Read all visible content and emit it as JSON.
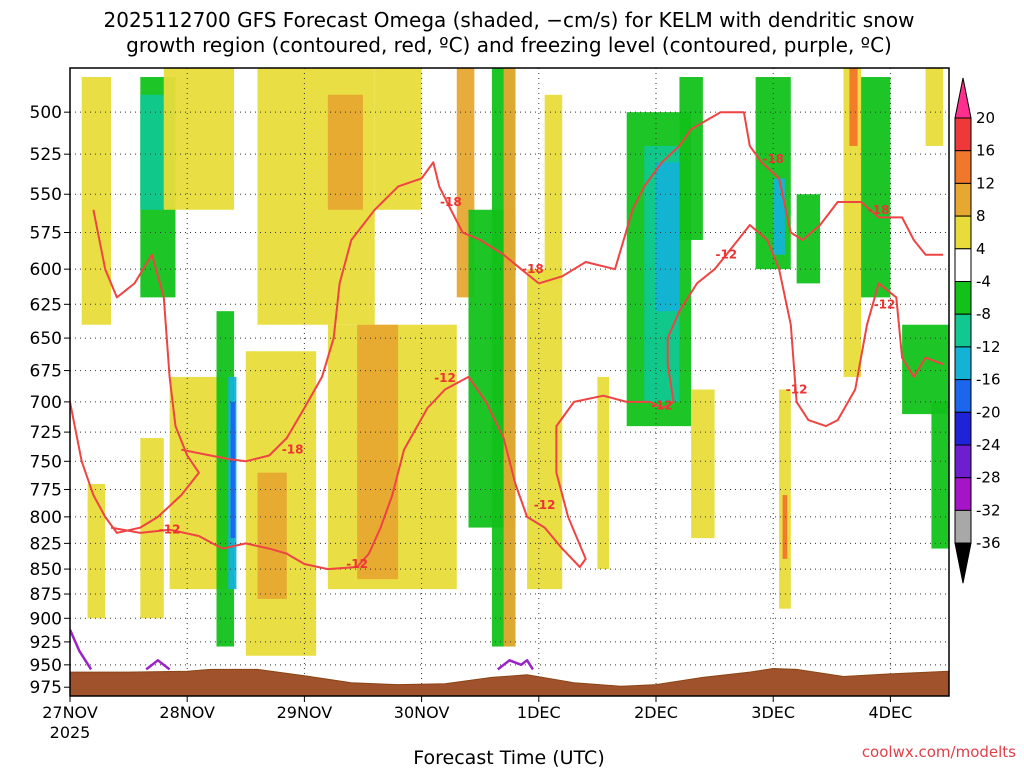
{
  "chart_data": {
    "type": "heatmap",
    "title_line1": "2025112700 GFS Forecast Omega (shaded, −cm/s) for KELM with dendritic snow",
    "title_line2": "growth region (contoured, red, ºC) and freezing level (contoured, purple, ºC)",
    "xlabel": "Forecast Time (UTC)",
    "credit": "coolwx.com/modelts",
    "x_ticks": [
      "27NOV",
      "28NOV",
      "29NOV",
      "30NOV",
      "1DEC",
      "2DEC",
      "3DEC",
      "4DEC"
    ],
    "x_year": "2025",
    "x_range_days": [
      0,
      7.5
    ],
    "y_ticks": [
      500,
      525,
      550,
      575,
      600,
      625,
      650,
      675,
      700,
      725,
      750,
      775,
      800,
      825,
      850,
      875,
      900,
      925,
      950,
      975
    ],
    "y_range_hpa": [
      475,
      985
    ],
    "y_scale": "log",
    "grid": "dotted",
    "colorbar": {
      "labels": [
        "20",
        "16",
        "12",
        "8",
        "4",
        "-4",
        "-8",
        "-12",
        "-16",
        "-20",
        "-24",
        "-28",
        "-32",
        "-36"
      ],
      "bins": [
        {
          "color": "#ff2f8e"
        },
        {
          "color": "#ef3838"
        },
        {
          "color": "#f1772a"
        },
        {
          "color": "#e7a832"
        },
        {
          "color": "#e8dc3a"
        },
        {
          "color": "#ffffff"
        },
        {
          "color": "#12c21a"
        },
        {
          "color": "#11c890"
        },
        {
          "color": "#14b3d6"
        },
        {
          "color": "#1b66ec"
        },
        {
          "color": "#2022d8"
        },
        {
          "color": "#6d1fd0"
        },
        {
          "color": "#a614c8"
        },
        {
          "color": "#a8a8a8"
        },
        {
          "color": "#000000"
        }
      ]
    },
    "omega_patches": [
      {
        "t0": 0.1,
        "t1": 0.35,
        "p0": 480,
        "p1": 640,
        "level": 4
      },
      {
        "t0": 0.6,
        "t1": 0.9,
        "p0": 480,
        "p1": 620,
        "level": -8
      },
      {
        "t0": 0.6,
        "t1": 0.85,
        "p0": 490,
        "p1": 560,
        "level": -12
      },
      {
        "t0": 0.15,
        "t1": 0.3,
        "p0": 770,
        "p1": 900,
        "level": 4
      },
      {
        "t0": 0.6,
        "t1": 0.8,
        "p0": 730,
        "p1": 900,
        "level": 4
      },
      {
        "t0": 0.8,
        "t1": 1.4,
        "p0": 470,
        "p1": 560,
        "level": 4
      },
      {
        "t0": 0.85,
        "t1": 1.4,
        "p0": 680,
        "p1": 870,
        "level": 4
      },
      {
        "t0": 1.25,
        "t1": 1.4,
        "p0": 630,
        "p1": 930,
        "level": -8
      },
      {
        "t0": 1.35,
        "t1": 1.42,
        "p0": 680,
        "p1": 870,
        "level": -16
      },
      {
        "t0": 1.37,
        "t1": 1.41,
        "p0": 700,
        "p1": 820,
        "level": -20
      },
      {
        "t0": 1.5,
        "t1": 2.1,
        "p0": 660,
        "p1": 940,
        "level": 4
      },
      {
        "t0": 1.6,
        "t1": 1.85,
        "p0": 760,
        "p1": 880,
        "level": 8
      },
      {
        "t0": 1.6,
        "t1": 2.6,
        "p0": 470,
        "p1": 640,
        "level": 4
      },
      {
        "t0": 2.2,
        "t1": 2.5,
        "p0": 490,
        "p1": 560,
        "level": 8
      },
      {
        "t0": 2.2,
        "t1": 3.3,
        "p0": 640,
        "p1": 870,
        "level": 4
      },
      {
        "t0": 2.45,
        "t1": 2.8,
        "p0": 640,
        "p1": 860,
        "level": 8
      },
      {
        "t0": 2.6,
        "t1": 3.0,
        "p0": 470,
        "p1": 560,
        "level": 4
      },
      {
        "t0": 3.3,
        "t1": 3.45,
        "p0": 470,
        "p1": 620,
        "level": 8
      },
      {
        "t0": 3.4,
        "t1": 3.8,
        "p0": 560,
        "p1": 810,
        "level": -8
      },
      {
        "t0": 3.6,
        "t1": 3.8,
        "p0": 470,
        "p1": 930,
        "level": -8
      },
      {
        "t0": 3.7,
        "t1": 3.8,
        "p0": 470,
        "p1": 930,
        "level": 8
      },
      {
        "t0": 3.9,
        "t1": 4.2,
        "p0": 600,
        "p1": 870,
        "level": 4
      },
      {
        "t0": 4.05,
        "t1": 4.2,
        "p0": 490,
        "p1": 610,
        "level": 4
      },
      {
        "t0": 4.5,
        "t1": 4.6,
        "p0": 680,
        "p1": 850,
        "level": 4
      },
      {
        "t0": 4.75,
        "t1": 5.3,
        "p0": 500,
        "p1": 720,
        "level": -8
      },
      {
        "t0": 4.9,
        "t1": 5.2,
        "p0": 520,
        "p1": 700,
        "level": -12
      },
      {
        "t0": 5.0,
        "t1": 5.2,
        "p0": 530,
        "p1": 630,
        "level": -16
      },
      {
        "t0": 5.2,
        "t1": 5.4,
        "p0": 480,
        "p1": 580,
        "level": -8
      },
      {
        "t0": 5.3,
        "t1": 5.5,
        "p0": 690,
        "p1": 820,
        "level": 4
      },
      {
        "t0": 5.85,
        "t1": 6.15,
        "p0": 480,
        "p1": 600,
        "level": -8
      },
      {
        "t0": 6.0,
        "t1": 6.1,
        "p0": 540,
        "p1": 590,
        "level": -16
      },
      {
        "t0": 6.05,
        "t1": 6.15,
        "p0": 690,
        "p1": 890,
        "level": 4
      },
      {
        "t0": 6.08,
        "t1": 6.12,
        "p0": 780,
        "p1": 840,
        "level": 12
      },
      {
        "t0": 6.2,
        "t1": 6.4,
        "p0": 550,
        "p1": 610,
        "level": -8
      },
      {
        "t0": 6.6,
        "t1": 6.75,
        "p0": 470,
        "p1": 680,
        "level": 4
      },
      {
        "t0": 6.65,
        "t1": 6.72,
        "p0": 470,
        "p1": 520,
        "level": 12
      },
      {
        "t0": 6.75,
        "t1": 7.0,
        "p0": 480,
        "p1": 620,
        "level": -8
      },
      {
        "t0": 7.1,
        "t1": 7.5,
        "p0": 640,
        "p1": 710,
        "level": -8
      },
      {
        "t0": 7.35,
        "t1": 7.5,
        "p0": 700,
        "p1": 830,
        "level": -8
      },
      {
        "t0": 7.3,
        "t1": 7.45,
        "p0": 470,
        "p1": 520,
        "level": 4
      }
    ],
    "contour_minus18": [
      [
        0.95,
        740
      ],
      [
        1.2,
        745
      ],
      [
        1.35,
        748
      ],
      [
        1.5,
        750
      ],
      [
        1.7,
        745
      ],
      [
        1.85,
        730
      ],
      [
        2.0,
        705
      ],
      [
        2.15,
        680
      ],
      [
        2.25,
        650
      ],
      [
        2.3,
        610
      ],
      [
        2.4,
        580
      ],
      [
        2.6,
        560
      ],
      [
        2.8,
        545
      ],
      [
        3.0,
        540
      ],
      [
        3.1,
        530
      ],
      [
        3.15,
        545
      ],
      [
        3.25,
        560
      ],
      [
        3.35,
        575
      ],
      [
        3.5,
        580
      ],
      [
        3.7,
        590
      ],
      [
        3.85,
        600
      ],
      [
        4.0,
        610
      ],
      [
        4.2,
        605
      ],
      [
        4.4,
        595
      ],
      [
        4.65,
        600
      ],
      [
        4.8,
        560
      ],
      [
        4.9,
        545
      ],
      [
        5.05,
        530
      ],
      [
        5.2,
        520
      ],
      [
        5.3,
        510
      ],
      [
        5.55,
        500
      ],
      [
        5.75,
        500
      ],
      [
        5.8,
        520
      ],
      [
        5.9,
        530
      ],
      [
        6.05,
        540
      ],
      [
        6.15,
        575
      ],
      [
        6.25,
        580
      ],
      [
        6.4,
        570
      ],
      [
        6.55,
        555
      ],
      [
        6.75,
        555
      ],
      [
        6.9,
        565
      ],
      [
        7.1,
        565
      ],
      [
        7.2,
        580
      ],
      [
        7.3,
        590
      ],
      [
        7.45,
        590
      ]
    ],
    "contour_minus12": [
      [
        0.2,
        560
      ],
      [
        0.3,
        600
      ],
      [
        0.4,
        620
      ],
      [
        0.55,
        610
      ],
      [
        0.7,
        590
      ],
      [
        0.8,
        620
      ],
      [
        0.85,
        680
      ],
      [
        0.9,
        720
      ],
      [
        1.0,
        745
      ],
      [
        1.1,
        760
      ],
      [
        0.95,
        780
      ],
      [
        0.75,
        800
      ],
      [
        0.6,
        810
      ],
      [
        0.4,
        815
      ],
      [
        0.3,
        800
      ],
      [
        0.2,
        780
      ],
      [
        0.1,
        750
      ],
      [
        0.0,
        700
      ]
    ],
    "contour_minus12b": [
      [
        0.35,
        810
      ],
      [
        0.6,
        815
      ],
      [
        0.85,
        812
      ],
      [
        1.1,
        818
      ],
      [
        1.3,
        830
      ],
      [
        1.5,
        825
      ],
      [
        1.7,
        830
      ],
      [
        1.85,
        835
      ],
      [
        2.0,
        845
      ],
      [
        2.2,
        850
      ],
      [
        2.45,
        848
      ],
      [
        2.55,
        835
      ],
      [
        2.65,
        810
      ],
      [
        2.75,
        780
      ],
      [
        2.85,
        740
      ],
      [
        3.05,
        705
      ],
      [
        3.2,
        690
      ],
      [
        3.4,
        680
      ],
      [
        3.55,
        700
      ],
      [
        3.7,
        730
      ],
      [
        3.8,
        770
      ],
      [
        3.9,
        800
      ],
      [
        4.05,
        810
      ],
      [
        4.2,
        830
      ],
      [
        4.35,
        848
      ],
      [
        4.4,
        840
      ],
      [
        4.25,
        800
      ],
      [
        4.15,
        760
      ],
      [
        4.15,
        720
      ],
      [
        4.3,
        700
      ],
      [
        4.55,
        695
      ],
      [
        4.75,
        700
      ],
      [
        4.95,
        700
      ],
      [
        5.05,
        705
      ],
      [
        5.15,
        700
      ],
      [
        5.1,
        670
      ],
      [
        5.1,
        650
      ],
      [
        5.2,
        630
      ],
      [
        5.35,
        610
      ],
      [
        5.5,
        600
      ],
      [
        5.6,
        590
      ],
      [
        5.7,
        580
      ],
      [
        5.8,
        570
      ],
      [
        5.95,
        580
      ],
      [
        6.05,
        600
      ],
      [
        6.15,
        640
      ],
      [
        6.2,
        700
      ],
      [
        6.3,
        715
      ],
      [
        6.45,
        720
      ],
      [
        6.55,
        715
      ],
      [
        6.7,
        690
      ],
      [
        6.8,
        640
      ],
      [
        6.9,
        610
      ],
      [
        7.05,
        620
      ],
      [
        7.1,
        665
      ],
      [
        7.2,
        680
      ],
      [
        7.3,
        665
      ],
      [
        7.45,
        670
      ]
    ],
    "contour_labels": [
      {
        "text": "-18",
        "t": 1.9,
        "p": 740
      },
      {
        "text": "-18",
        "t": 3.25,
        "p": 555
      },
      {
        "text": "-18",
        "t": 3.95,
        "p": 600
      },
      {
        "text": "-18",
        "t": 6.0,
        "p": 528
      },
      {
        "text": "-18",
        "t": 6.9,
        "p": 560
      },
      {
        "text": "-12",
        "t": 0.85,
        "p": 812
      },
      {
        "text": "-12",
        "t": 2.45,
        "p": 845
      },
      {
        "text": "-12",
        "t": 3.2,
        "p": 681
      },
      {
        "text": "-12",
        "t": 4.05,
        "p": 789
      },
      {
        "text": "-12",
        "t": 5.05,
        "p": 703
      },
      {
        "text": "-12",
        "t": 5.6,
        "p": 590
      },
      {
        "text": "-12",
        "t": 6.2,
        "p": 690
      },
      {
        "text": "-12",
        "t": 6.95,
        "p": 625
      }
    ],
    "freezing_contours": [
      [
        [
          0.0,
          912
        ],
        [
          0.08,
          935
        ],
        [
          0.18,
          955
        ]
      ],
      [
        [
          0.65,
          955
        ],
        [
          0.75,
          945
        ],
        [
          0.85,
          955
        ]
      ],
      [
        [
          3.65,
          955
        ],
        [
          3.75,
          945
        ],
        [
          3.85,
          950
        ],
        [
          3.9,
          945
        ],
        [
          3.95,
          955
        ]
      ]
    ],
    "terrain_top_hpa": [
      [
        0.0,
        958
      ],
      [
        0.5,
        958
      ],
      [
        1.0,
        957
      ],
      [
        1.2,
        955
      ],
      [
        1.6,
        955
      ],
      [
        2.0,
        962
      ],
      [
        2.4,
        970
      ],
      [
        2.8,
        972
      ],
      [
        3.2,
        971
      ],
      [
        3.6,
        964
      ],
      [
        3.9,
        961
      ],
      [
        4.3,
        970
      ],
      [
        4.7,
        974
      ],
      [
        5.0,
        972
      ],
      [
        5.4,
        964
      ],
      [
        5.8,
        958
      ],
      [
        6.0,
        954
      ],
      [
        6.2,
        955
      ],
      [
        6.6,
        963
      ],
      [
        7.0,
        960
      ],
      [
        7.5,
        957
      ]
    ]
  }
}
